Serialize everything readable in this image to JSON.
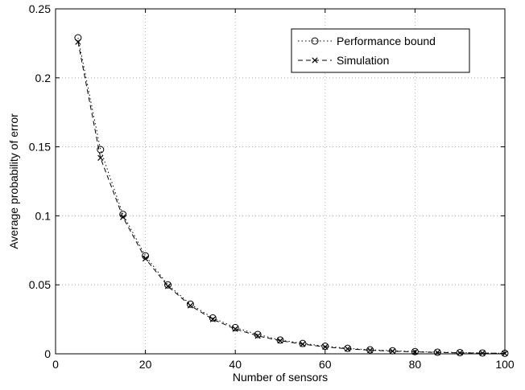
{
  "chart_data": {
    "type": "line",
    "title": "",
    "xlabel": "Number of sensors",
    "ylabel": "Average probability of error",
    "xlim": [
      0,
      100
    ],
    "ylim": [
      0,
      0.25
    ],
    "xticks": [
      0,
      20,
      40,
      60,
      80,
      100
    ],
    "yticks": [
      0,
      0.05,
      0.1,
      0.15,
      0.2,
      0.25
    ],
    "xtick_labels": [
      "0",
      "20",
      "40",
      "60",
      "80",
      "100"
    ],
    "ytick_labels": [
      "0",
      "0.05",
      "0.1",
      "0.15",
      "0.2",
      "0.25"
    ],
    "grid": true,
    "legend_position": "top-right",
    "x": [
      5,
      10,
      15,
      20,
      25,
      30,
      35,
      40,
      45,
      50,
      55,
      60,
      65,
      70,
      75,
      80,
      85,
      90,
      95,
      100
    ],
    "series": [
      {
        "name": "Performance bound",
        "marker": "circle",
        "line_style": "dotted",
        "color": "#000000",
        "values": [
          0.229,
          0.148,
          0.101,
          0.071,
          0.05,
          0.036,
          0.026,
          0.019,
          0.014,
          0.01,
          0.0075,
          0.0055,
          0.004,
          0.0029,
          0.0022,
          0.0016,
          0.0012,
          0.0009,
          0.0006,
          0.0004
        ]
      },
      {
        "name": "Simulation",
        "marker": "x",
        "line_style": "dashed",
        "color": "#000000",
        "values": [
          0.226,
          0.142,
          0.099,
          0.069,
          0.049,
          0.035,
          0.025,
          0.018,
          0.013,
          0.0095,
          0.007,
          0.005,
          0.0036,
          0.0026,
          0.0019,
          0.0014,
          0.001,
          0.0007,
          0.0005,
          0.0003
        ]
      }
    ]
  }
}
